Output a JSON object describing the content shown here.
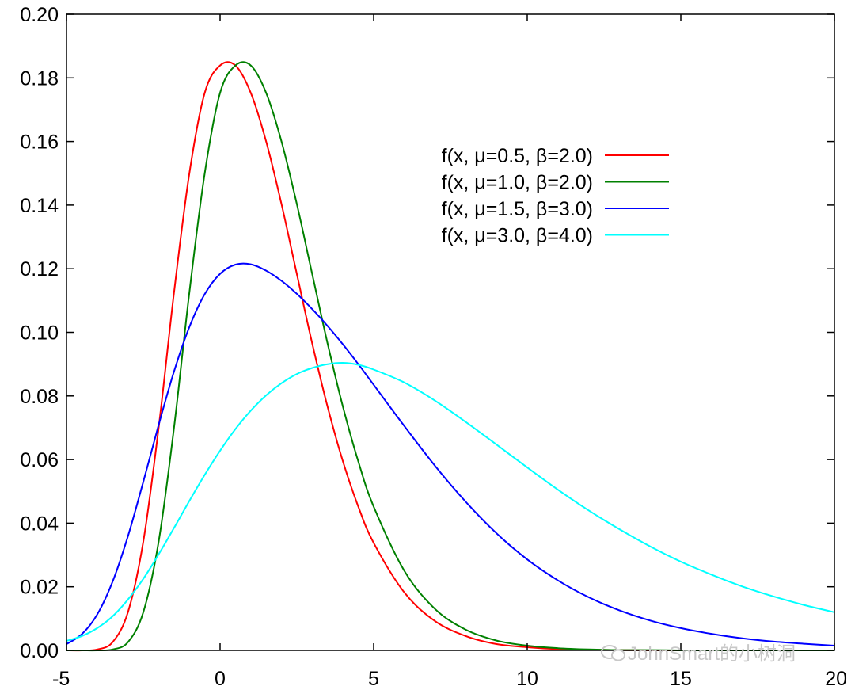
{
  "chart_data": {
    "type": "line",
    "title": "",
    "xlabel": "",
    "ylabel": "",
    "xlim": [
      -5,
      20
    ],
    "ylim": [
      0,
      0.2
    ],
    "grid": false,
    "legend_position": "top-right",
    "x_ticks": [
      "-5",
      "0",
      "5",
      "10",
      "15",
      "20"
    ],
    "y_ticks": [
      "0.00",
      "0.02",
      "0.04",
      "0.06",
      "0.08",
      "0.10",
      "0.12",
      "0.14",
      "0.16",
      "0.18",
      "0.20"
    ],
    "x_tick_values": [
      -5,
      0,
      5,
      10,
      15,
      20
    ],
    "y_tick_values": [
      0,
      0.02,
      0.04,
      0.06,
      0.08,
      0.1,
      0.12,
      0.14,
      0.16,
      0.18,
      0.2
    ],
    "x": [
      -5,
      -4.5,
      -4,
      -3.5,
      -3,
      -2.5,
      -2,
      -1.5,
      -1,
      -0.5,
      0,
      0.5,
      1,
      1.5,
      2,
      2.5,
      3,
      3.5,
      4,
      4.5,
      5,
      6,
      7,
      8,
      9,
      10,
      11,
      12,
      13,
      14,
      15,
      16,
      17,
      18,
      19,
      20
    ],
    "series": [
      {
        "name": "f(x, μ=0.5, β=2.0)",
        "color": "#ff0000",
        "values": [
          0.0,
          0.0,
          0.0003,
          0.0026,
          0.012,
          0.0342,
          0.07,
          0.1125,
          0.15,
          0.1753,
          0.1839,
          0.1839,
          0.1753,
          0.16,
          0.1403,
          0.1183,
          0.0965,
          0.0766,
          0.0594,
          0.0452,
          0.0338,
          0.0182,
          0.0092,
          0.0045,
          0.002,
          0.001,
          0.0004,
          0.0002,
          0.0001,
          0.0,
          0.0,
          0.0,
          0.0,
          0.0,
          0.0,
          0.0
        ]
      },
      {
        "name": "f(x, μ=1.0, β=2.0)",
        "color": "#008000",
        "values": [
          0.0,
          0.0,
          0.0,
          0.0003,
          0.0026,
          0.012,
          0.0342,
          0.07,
          0.1125,
          0.15,
          0.1753,
          0.1839,
          0.1839,
          0.1753,
          0.16,
          0.1403,
          0.1183,
          0.0965,
          0.0766,
          0.0594,
          0.0452,
          0.025,
          0.013,
          0.0065,
          0.0031,
          0.0015,
          0.0007,
          0.0003,
          0.0001,
          0.0001,
          0.0,
          0.0,
          0.0,
          0.0,
          0.0,
          0.0
        ]
      },
      {
        "name": "f(x, μ=1.5, β=3.0)",
        "color": "#0000ff",
        "values": [
          0.002,
          0.0051,
          0.0113,
          0.0216,
          0.0359,
          0.053,
          0.0709,
          0.0877,
          0.1017,
          0.112,
          0.1184,
          0.1213,
          0.1214,
          0.1194,
          0.1162,
          0.1121,
          0.1073,
          0.102,
          0.0962,
          0.09,
          0.0835,
          0.0705,
          0.058,
          0.0467,
          0.0368,
          0.0286,
          0.022,
          0.0167,
          0.0126,
          0.0094,
          0.007,
          0.0052,
          0.0038,
          0.0028,
          0.0021,
          0.0015
        ]
      },
      {
        "name": "f(x, μ=3.0, β=4.0)",
        "color": "#00ffff",
        "values": [
          0.003,
          0.0045,
          0.007,
          0.0107,
          0.016,
          0.0225,
          0.0302,
          0.0385,
          0.047,
          0.0552,
          0.0628,
          0.0696,
          0.0754,
          0.0802,
          0.084,
          0.0869,
          0.0888,
          0.09,
          0.0904,
          0.0898,
          0.0883,
          0.0842,
          0.0785,
          0.0718,
          0.0647,
          0.0575,
          0.0505,
          0.044,
          0.0381,
          0.0327,
          0.0279,
          0.0238,
          0.0201,
          0.017,
          0.0143,
          0.012
        ]
      }
    ]
  },
  "watermark": {
    "text": "JohnSmart的小树洞",
    "icon": "wechat-icon"
  }
}
